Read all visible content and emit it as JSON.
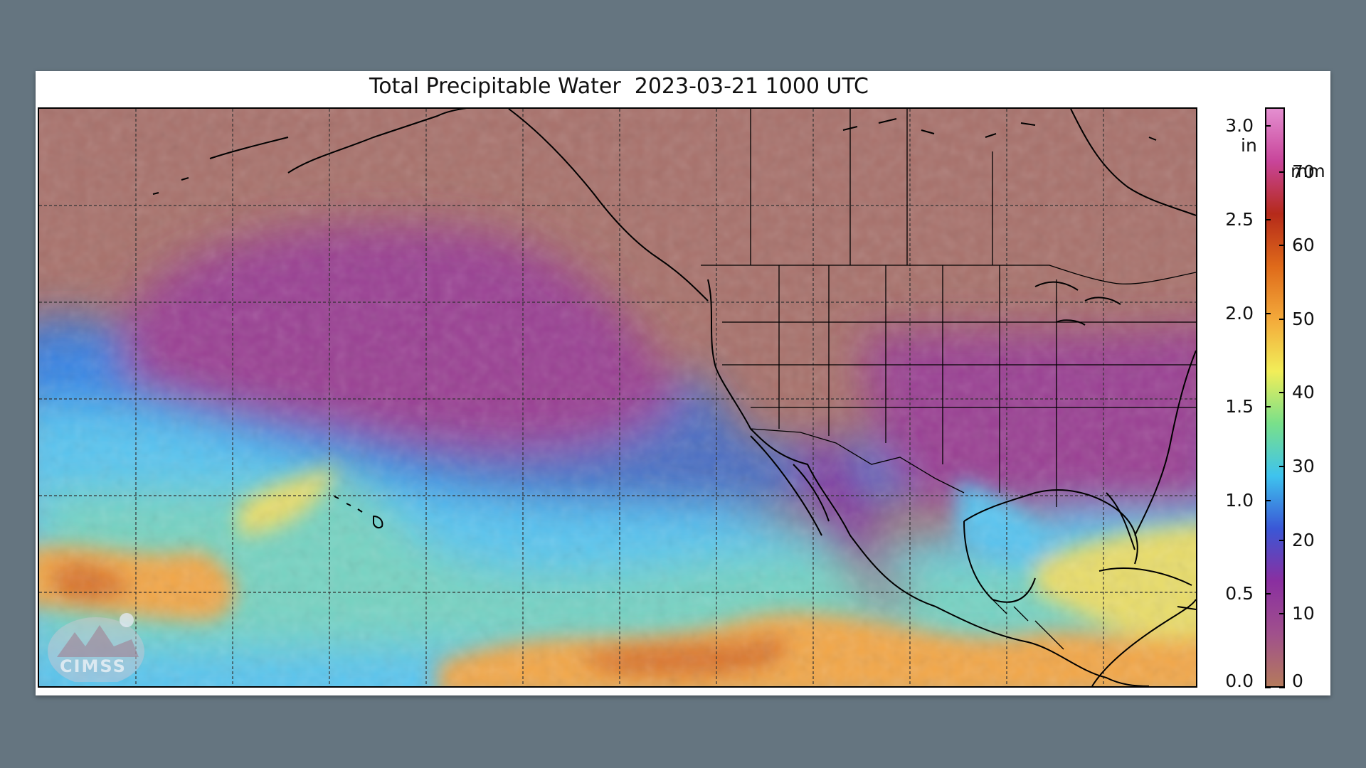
{
  "figure": {
    "title": "Total Precipitable Water  2023-03-21 1000 UTC"
  },
  "colorbar": {
    "left_unit": "in",
    "right_unit": "mm",
    "inch_ticks": [
      {
        "label": "3.0",
        "value": 3.0
      },
      {
        "label": "2.5",
        "value": 2.5
      },
      {
        "label": "2.0",
        "value": 2.0
      },
      {
        "label": "1.5",
        "value": 1.5
      },
      {
        "label": "1.0",
        "value": 1.0
      },
      {
        "label": "0.5",
        "value": 0.5
      },
      {
        "label": "0.0",
        "value": 0.0
      }
    ],
    "mm_ticks": [
      {
        "label": "70",
        "value": 70
      },
      {
        "label": "60",
        "value": 60
      },
      {
        "label": "50",
        "value": 50
      },
      {
        "label": "40",
        "value": 40
      },
      {
        "label": "30",
        "value": 30
      },
      {
        "label": "20",
        "value": 20
      },
      {
        "label": "10",
        "value": 10
      },
      {
        "label": "0",
        "value": 0
      }
    ],
    "range_in": [
      0.0,
      3.1
    ],
    "colors_bottom_to_top": [
      "#b47a5c",
      "#a0508c",
      "#8a2fa0",
      "#3a57d6",
      "#3ec3ee",
      "#79e08a",
      "#f2ee59",
      "#f3a93a",
      "#df6a1a",
      "#b52a1a",
      "#c8459a",
      "#e48fd0"
    ]
  },
  "logo": {
    "text": "CIMSS"
  },
  "map": {
    "colors": {
      "dry": "#a8716b",
      "purple": "#9a3f93",
      "deep_purple": "#84319a",
      "blue": "#2e6fe0",
      "light_blue": "#58c4f0",
      "green": "#8fe09c",
      "yellow": "#e8dc6a",
      "orange": "#f2a74a",
      "dark_orange": "#d9752e",
      "coast": "#000000",
      "grid": "#333333"
    },
    "grid_style": "dashed"
  }
}
